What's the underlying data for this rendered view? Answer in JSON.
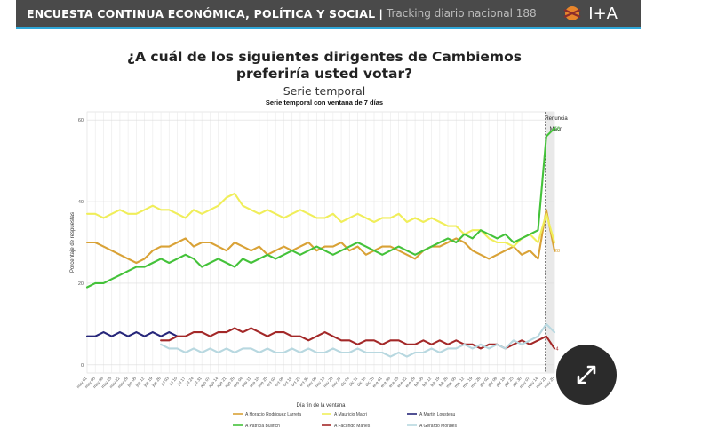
{
  "header": {
    "title": "ENCUESTA CONTINUA ECONÓMICA, POLÍTICA Y SOCIAL",
    "separator": "|",
    "subtitle": "Tracking diario nacional 188",
    "logo_text": "I+A"
  },
  "expand_icon": "expand-arrows-icon",
  "chart_data": {
    "type": "line",
    "title": "¿A cuál de los siguientes dirigentes de Cambiemos preferiría usted votar?",
    "title_line1": "¿A cuál de los siguientes dirigentes de Cambiemos",
    "title_line2": "preferiría usted votar?",
    "subtitle": "Serie temporal",
    "plot_subtitle": "Serie temporal con ventana de 7 días",
    "xlabel": "Día fin de la ventana",
    "ylabel": "Porcentaje de respuestas",
    "ylim": [
      -2,
      62
    ],
    "yticks": [
      0,
      20,
      40,
      60
    ],
    "grid": true,
    "legend_position": "bottom",
    "annotation": {
      "label_line1": "Renuncia",
      "label_line2": "Macri",
      "x_index": 56
    },
    "x_tick_labels": [
      "may 01",
      "may 05",
      "may 08",
      "may 15",
      "may 22",
      "may 29",
      "jun 05",
      "jun 12",
      "jun 19",
      "jun 26",
      "jul 03",
      "jul 10",
      "jul 17",
      "jul 24",
      "jul 31",
      "ago 07",
      "ago 14",
      "ago 21",
      "ago 28",
      "sep 04",
      "sep 11",
      "sep 18",
      "sep 25",
      "oct 02",
      "oct 09",
      "oct 16",
      "oct 23",
      "oct 30",
      "nov 06",
      "nov 13",
      "nov 20",
      "nov 27",
      "dic 04",
      "dic 11",
      "dic 18",
      "dic 25",
      "ene 01",
      "ene 08",
      "ene 15",
      "ene 22",
      "ene 29",
      "feb 05",
      "feb 12",
      "feb 19",
      "feb 26",
      "mar 05",
      "mar 12",
      "mar 19",
      "mar 26",
      "abr 02",
      "abr 09",
      "abr 16",
      "abr 23",
      "abr 30",
      "may 07",
      "may 14",
      "may 21",
      "may 28"
    ],
    "end_labels": [
      {
        "series": "A Patricia Bullrich",
        "value": "58"
      },
      {
        "series": "A Horacio Rodriguez Larreta",
        "value": "28"
      },
      {
        "series": "A Facundo Manes",
        "value": "4"
      }
    ],
    "series": [
      {
        "name": "A Horacio Rodriguez Larreta",
        "color": "#d9a236",
        "values": [
          30,
          30,
          29,
          28,
          27,
          26,
          25,
          26,
          28,
          29,
          29,
          30,
          31,
          29,
          30,
          30,
          29,
          28,
          30,
          29,
          28,
          29,
          27,
          28,
          29,
          28,
          29,
          30,
          28,
          29,
          29,
          30,
          28,
          29,
          27,
          28,
          29,
          29,
          28,
          27,
          26,
          28,
          29,
          29,
          30,
          31,
          30,
          28,
          27,
          26,
          27,
          28,
          29,
          27,
          28,
          26,
          38,
          28
        ]
      },
      {
        "name": "A Mauricio Macri",
        "color": "#f0ee5a",
        "values": [
          37,
          37,
          36,
          37,
          38,
          37,
          37,
          38,
          39,
          38,
          38,
          37,
          36,
          38,
          37,
          38,
          39,
          41,
          42,
          39,
          38,
          37,
          38,
          37,
          36,
          37,
          38,
          37,
          36,
          36,
          37,
          35,
          36,
          37,
          36,
          35,
          36,
          36,
          37,
          35,
          36,
          35,
          36,
          35,
          34,
          34,
          32,
          33,
          33,
          31,
          30,
          30,
          29,
          31,
          32,
          30,
          37,
          30
        ]
      },
      {
        "name": "A Martin Lousteau",
        "color": "#26267a",
        "values": [
          7,
          7,
          8,
          7,
          8,
          7,
          8,
          7,
          8,
          7,
          8,
          7,
          null,
          null,
          null,
          null,
          null,
          null,
          null,
          null,
          null,
          null,
          null,
          null,
          null,
          null,
          null,
          null,
          null,
          null,
          null,
          null,
          null,
          null,
          null,
          null,
          null,
          null,
          null,
          null,
          null,
          null,
          null,
          null,
          null,
          null,
          null,
          null,
          null,
          null,
          null,
          null,
          null,
          null,
          null,
          null,
          null,
          null
        ]
      },
      {
        "name": "A Patricia Bullrich",
        "color": "#44c23a",
        "values": [
          19,
          20,
          20,
          21,
          22,
          23,
          24,
          24,
          25,
          26,
          25,
          26,
          27,
          26,
          24,
          25,
          26,
          25,
          24,
          26,
          25,
          26,
          27,
          26,
          27,
          28,
          27,
          28,
          29,
          28,
          27,
          28,
          29,
          30,
          29,
          28,
          27,
          28,
          29,
          28,
          27,
          28,
          29,
          30,
          31,
          30,
          32,
          31,
          33,
          32,
          31,
          32,
          30,
          31,
          32,
          33,
          56,
          58
        ]
      },
      {
        "name": "A Facundo Manes",
        "color": "#a32828",
        "values": [
          null,
          null,
          null,
          null,
          null,
          null,
          null,
          null,
          null,
          6,
          6,
          7,
          7,
          8,
          8,
          7,
          8,
          8,
          9,
          8,
          9,
          8,
          7,
          8,
          8,
          7,
          7,
          6,
          7,
          8,
          7,
          6,
          6,
          5,
          6,
          6,
          5,
          6,
          6,
          5,
          5,
          6,
          5,
          6,
          5,
          6,
          5,
          5,
          4,
          5,
          5,
          4,
          5,
          6,
          5,
          6,
          7,
          4
        ]
      },
      {
        "name": "A Gerardo Morales",
        "color": "#b8d8e0",
        "values": [
          null,
          null,
          null,
          null,
          null,
          null,
          null,
          null,
          null,
          5,
          4,
          4,
          3,
          4,
          3,
          4,
          3,
          4,
          3,
          4,
          4,
          3,
          4,
          3,
          3,
          4,
          3,
          4,
          3,
          3,
          4,
          3,
          3,
          4,
          3,
          3,
          3,
          2,
          3,
          2,
          3,
          3,
          4,
          3,
          4,
          4,
          5,
          4,
          5,
          4,
          5,
          4,
          6,
          5,
          6,
          7,
          10,
          8
        ]
      }
    ]
  }
}
